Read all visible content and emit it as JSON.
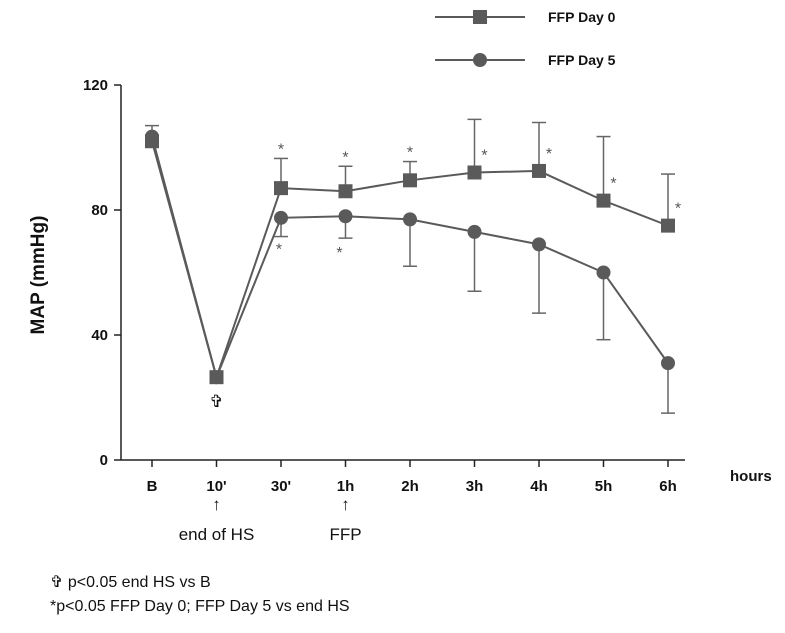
{
  "chart_data": {
    "type": "line",
    "ylabel": "MAP (mmHg)",
    "xunit_label": "hours",
    "categories": [
      "B",
      "10'",
      "30'",
      "1h",
      "2h",
      "3h",
      "4h",
      "5h",
      "6h"
    ],
    "ylim": [
      0,
      120
    ],
    "yticks": [
      0,
      40,
      80,
      120
    ],
    "series": [
      {
        "name": "FFP Day 0",
        "marker": "square",
        "color": "#5a5a5a",
        "values": [
          102,
          26.5,
          87,
          86,
          89.5,
          92,
          92.5,
          83,
          75
        ],
        "error_upper": [
          107,
          26.5,
          96.5,
          94,
          95.5,
          109,
          108,
          103.5,
          91.5
        ],
        "error_lower": [
          null,
          null,
          null,
          null,
          null,
          null,
          null,
          null,
          null
        ]
      },
      {
        "name": "FFP Day 5",
        "marker": "circle",
        "color": "#5a5a5a",
        "values": [
          103.5,
          26.5,
          77.5,
          78,
          77,
          73,
          69,
          60,
          31
        ],
        "error_upper": [
          null,
          null,
          null,
          null,
          null,
          null,
          null,
          null,
          null
        ],
        "error_lower": [
          103.5,
          26.5,
          71.5,
          71,
          62,
          54,
          47,
          38.5,
          15
        ]
      }
    ],
    "significance_stars": {
      "day0": [
        "",
        "",
        "*",
        "*",
        "*",
        "*",
        "*",
        "*",
        "*"
      ],
      "day5": [
        "",
        "",
        "*",
        "*",
        "",
        "",
        "",
        "",
        ""
      ]
    },
    "annotations": [
      {
        "category_index": 1,
        "arrow": "↑",
        "text": "end of HS"
      },
      {
        "category_index": 3,
        "arrow": "↑",
        "text": "FFP"
      }
    ],
    "cross_marker": {
      "category_index": 1,
      "symbol": "✞"
    },
    "legend_position": "top-right"
  },
  "footnotes": {
    "cross": "✞ p<0.05 end HS vs B",
    "star": "*p<0.05 FFP Day 0; FFP Day 5 vs end HS"
  }
}
